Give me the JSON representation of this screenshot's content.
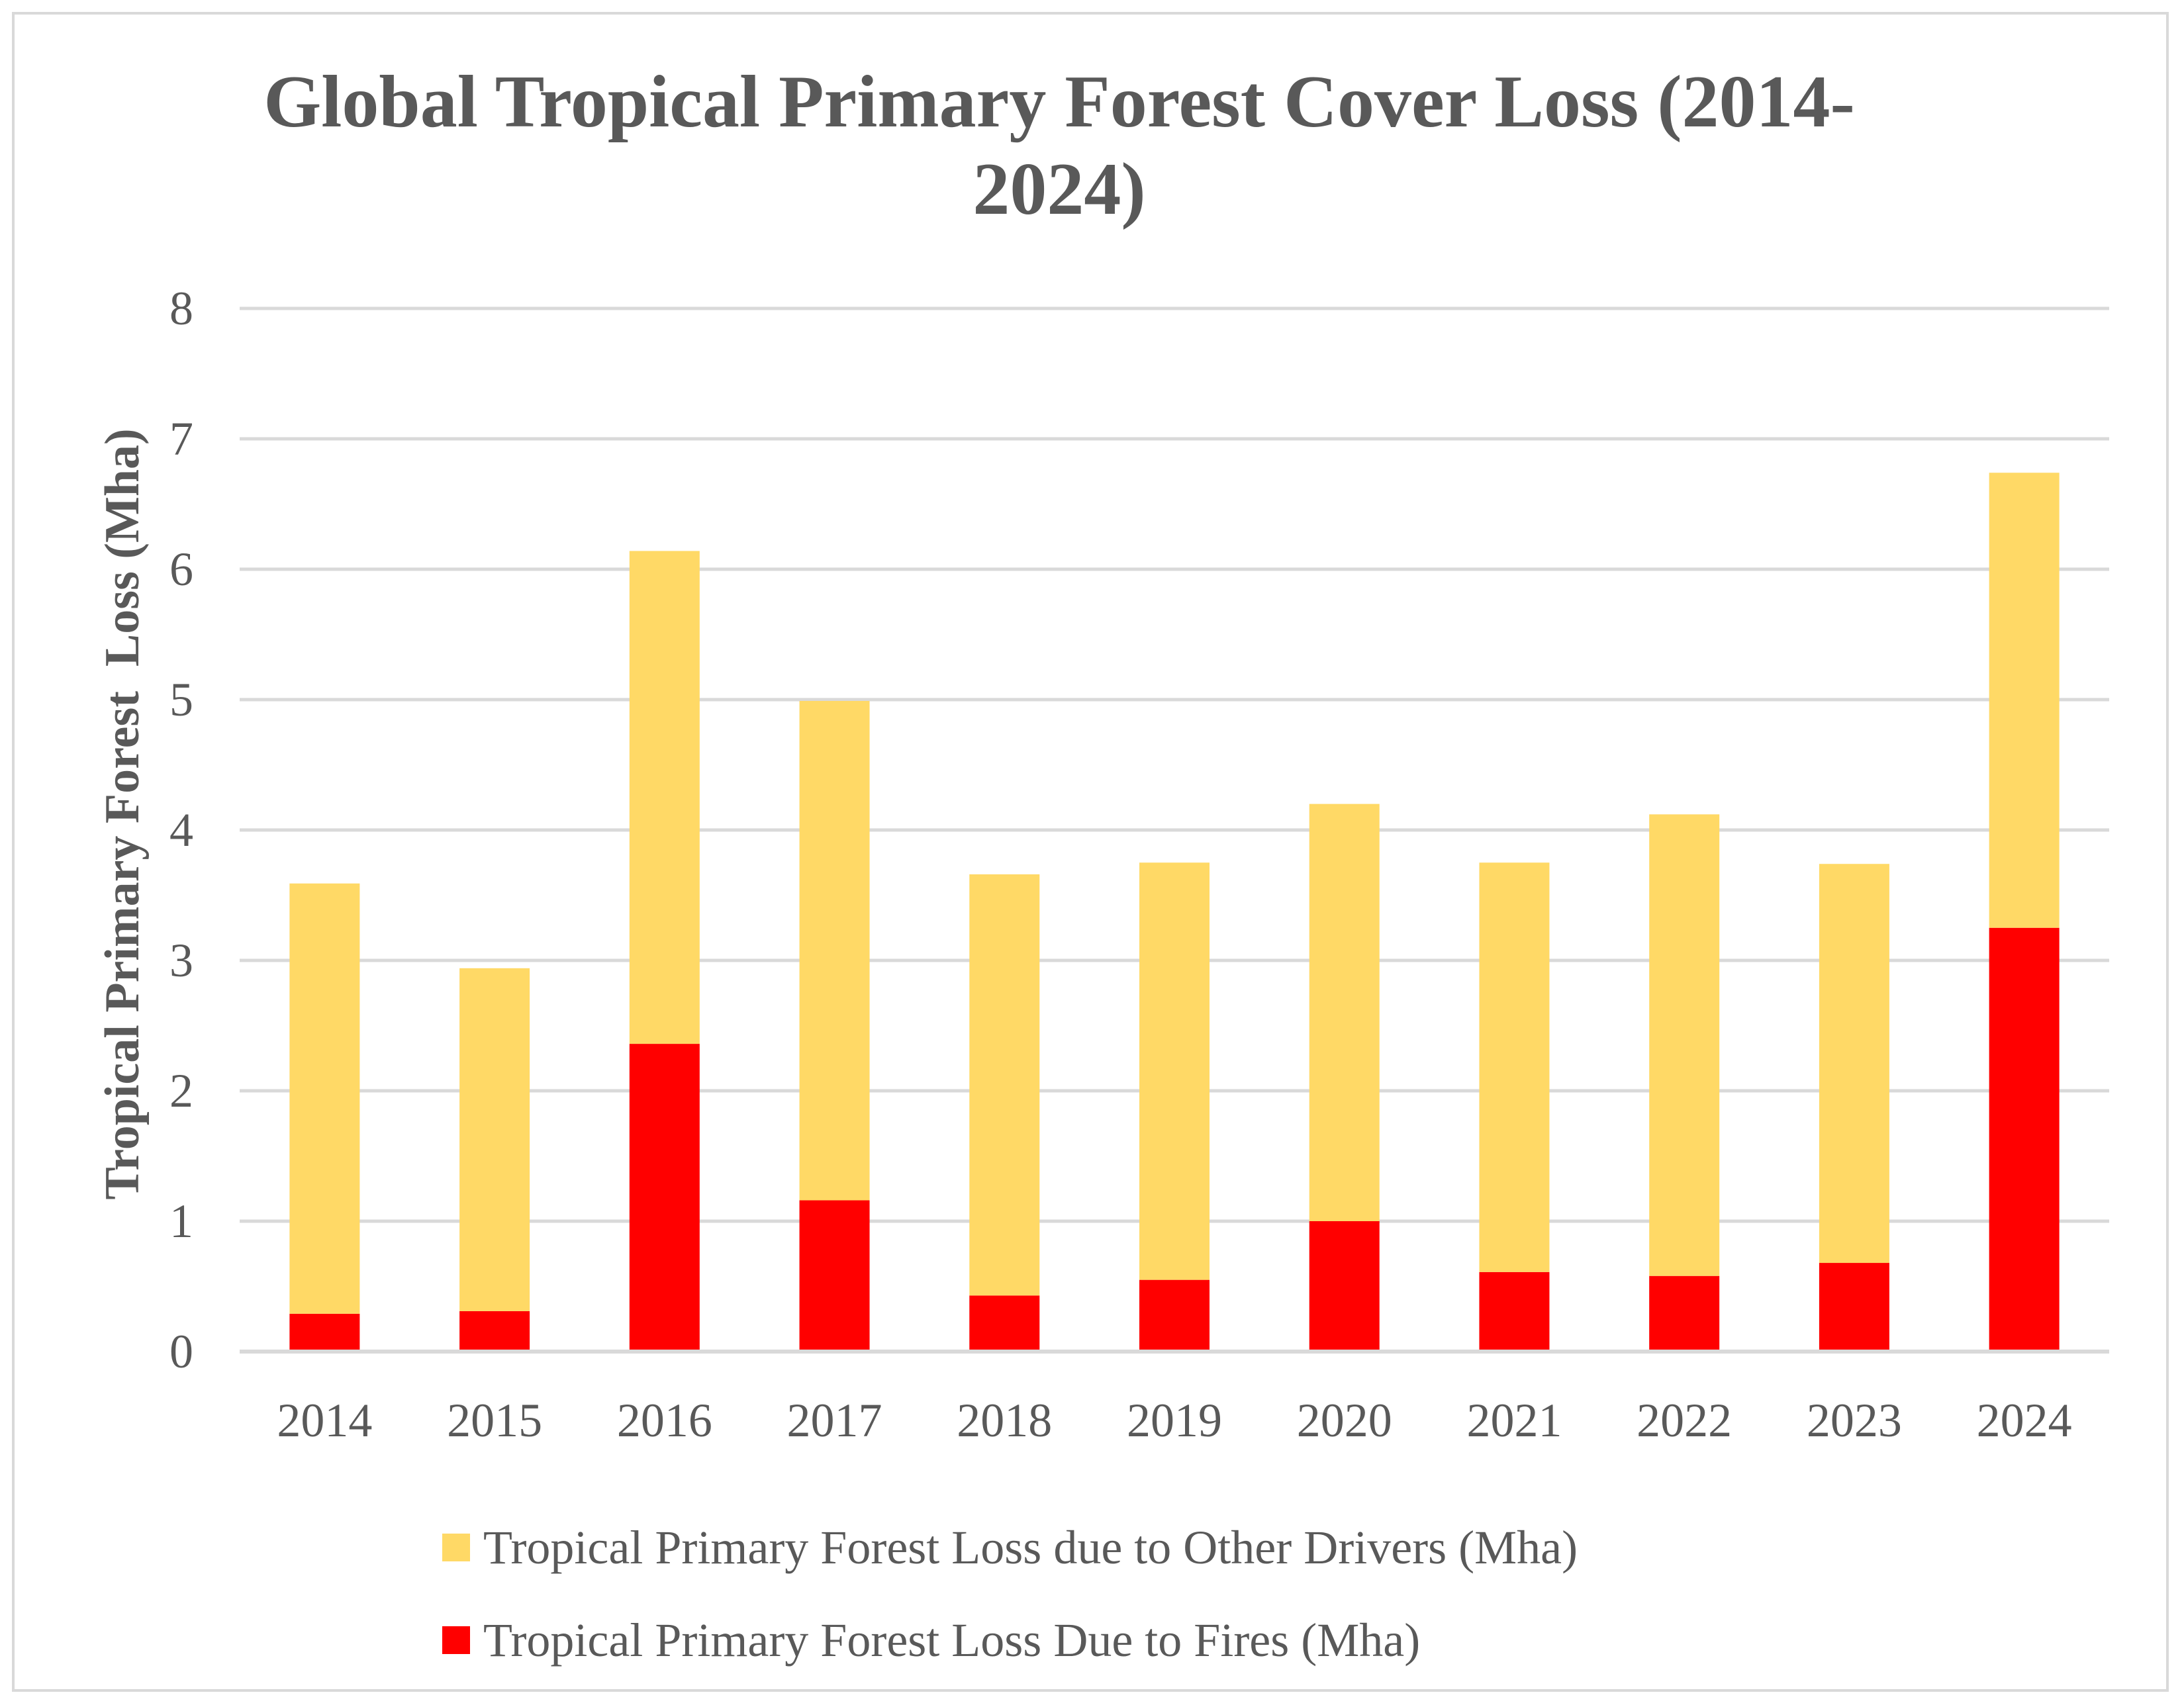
{
  "colors": {
    "other": "#FFD966",
    "fires": "#FF0000",
    "grid": "#D9D9D9",
    "text": "#595959"
  },
  "chart_data": {
    "type": "bar",
    "stacked": true,
    "title": "Global Tropical Primary Forest Cover Loss (2014-2024)",
    "xlabel": "",
    "ylabel": "Tropical Primary Forest  Loss (Mha)",
    "ylim": [
      0,
      8
    ],
    "yticks": [
      0,
      1,
      2,
      3,
      4,
      5,
      6,
      7,
      8
    ],
    "grid": true,
    "legend_position": "bottom",
    "categories": [
      "2014",
      "2015",
      "2016",
      "2017",
      "2018",
      "2019",
      "2020",
      "2021",
      "2022",
      "2023",
      "2024"
    ],
    "series": [
      {
        "name": "Tropical Primary Forest Loss Due to Fires (Mha)",
        "key": "fires",
        "values": [
          0.29,
          0.31,
          2.36,
          1.16,
          0.43,
          0.55,
          1.0,
          0.61,
          0.58,
          0.68,
          3.25
        ]
      },
      {
        "name": "Tropical Primary Forest Loss due to Other Drivers (Mha)",
        "key": "other",
        "values": [
          3.3,
          2.63,
          3.78,
          3.83,
          3.23,
          3.2,
          3.2,
          3.14,
          3.54,
          3.06,
          3.49
        ]
      }
    ],
    "legend": [
      "Tropical Primary Forest Loss due to Other Drivers (Mha)",
      "Tropical Primary Forest Loss Due to Fires (Mha)"
    ]
  }
}
